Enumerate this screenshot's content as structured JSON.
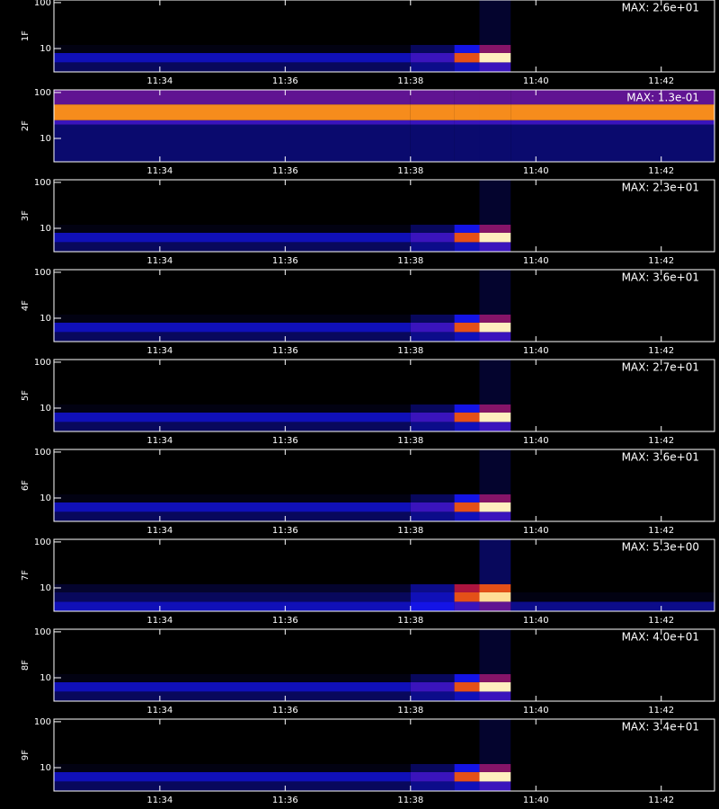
{
  "chart_data": [
    {
      "type": "spectrogram",
      "ylabel": "1F",
      "annotation": "MAX: 2.6e+01",
      "log_y": true,
      "xlim": [
        32.31,
        42.85
      ],
      "ylim": [
        3.1,
        114
      ],
      "yticks": [
        10,
        100
      ],
      "xticks": [
        {
          "value": 34,
          "label": "11:34"
        },
        {
          "value": 36,
          "label": "11:36"
        },
        {
          "value": 38,
          "label": "11:38"
        },
        {
          "value": 40,
          "label": "11:40"
        },
        {
          "value": 42,
          "label": "11:42"
        }
      ],
      "xedges": [
        32.31,
        38.0,
        38.7,
        39.1,
        39.6,
        42.85
      ],
      "yedges": [
        3.1,
        5,
        8,
        12,
        114
      ],
      "z": [
        [
          0.1,
          0.15,
          0.2,
          0.3,
          0
        ],
        [
          0.2,
          0.3,
          0.6,
          0.95,
          0
        ],
        [
          0.02,
          0.1,
          0.25,
          0.4,
          0
        ],
        [
          0,
          0,
          0,
          0.05,
          0
        ]
      ]
    },
    {
      "type": "spectrogram",
      "ylabel": "2F",
      "annotation": "MAX: 1.3e-01",
      "log_y": true,
      "xlim": [
        32.31,
        42.85
      ],
      "ylim": [
        3.1,
        114
      ],
      "yticks": [
        10,
        100
      ],
      "xticks": [
        {
          "value": 34,
          "label": "11:34"
        },
        {
          "value": 36,
          "label": "11:36"
        },
        {
          "value": 38,
          "label": "11:38"
        },
        {
          "value": 40,
          "label": "11:40"
        },
        {
          "value": 42,
          "label": "11:42"
        }
      ],
      "xedges": [
        32.31,
        38.0,
        38.7,
        39.1,
        39.6,
        42.85
      ],
      "yedges": [
        3.1,
        20,
        25,
        55,
        114
      ],
      "z": [
        [
          0.12,
          0.12,
          0.12,
          0.12,
          0.12
        ],
        [
          0.3,
          0.3,
          0.3,
          0.3,
          0.3
        ],
        [
          0.7,
          0.7,
          0.7,
          0.7,
          0.7
        ],
        [
          0.35,
          0.35,
          0.35,
          0.35,
          0.35
        ]
      ]
    },
    {
      "type": "spectrogram",
      "ylabel": "3F",
      "annotation": "MAX: 2.3e+01",
      "log_y": true,
      "xlim": [
        32.31,
        42.85
      ],
      "ylim": [
        3.1,
        114
      ],
      "yticks": [
        10,
        100
      ],
      "xticks": [
        {
          "value": 34,
          "label": "11:34"
        },
        {
          "value": 36,
          "label": "11:36"
        },
        {
          "value": 38,
          "label": "11:38"
        },
        {
          "value": 40,
          "label": "11:40"
        },
        {
          "value": 42,
          "label": "11:42"
        }
      ],
      "xedges": [
        32.31,
        38.0,
        38.7,
        39.1,
        39.6,
        42.85
      ],
      "yedges": [
        3.1,
        5,
        8,
        12,
        114
      ],
      "z": [
        [
          0.1,
          0.15,
          0.2,
          0.3,
          0
        ],
        [
          0.2,
          0.3,
          0.6,
          0.95,
          0
        ],
        [
          0.02,
          0.1,
          0.25,
          0.4,
          0
        ],
        [
          0,
          0,
          0,
          0.05,
          0
        ]
      ]
    },
    {
      "type": "spectrogram",
      "ylabel": "4F",
      "annotation": "MAX: 3.6e+01",
      "log_y": true,
      "xlim": [
        32.31,
        42.85
      ],
      "ylim": [
        3.1,
        114
      ],
      "yticks": [
        10,
        100
      ],
      "xticks": [
        {
          "value": 34,
          "label": "11:34"
        },
        {
          "value": 36,
          "label": "11:36"
        },
        {
          "value": 38,
          "label": "11:38"
        },
        {
          "value": 40,
          "label": "11:40"
        },
        {
          "value": 42,
          "label": "11:42"
        }
      ],
      "xedges": [
        32.31,
        38.0,
        38.7,
        39.1,
        39.6,
        42.85
      ],
      "yedges": [
        3.1,
        5,
        8,
        12,
        114
      ],
      "z": [
        [
          0.1,
          0.15,
          0.2,
          0.3,
          0
        ],
        [
          0.2,
          0.3,
          0.6,
          0.95,
          0
        ],
        [
          0.02,
          0.1,
          0.25,
          0.4,
          0
        ],
        [
          0,
          0,
          0,
          0.05,
          0
        ]
      ]
    },
    {
      "type": "spectrogram",
      "ylabel": "5F",
      "annotation": "MAX: 2.7e+01",
      "log_y": true,
      "xlim": [
        32.31,
        42.85
      ],
      "ylim": [
        3.1,
        114
      ],
      "yticks": [
        10,
        100
      ],
      "xticks": [
        {
          "value": 34,
          "label": "11:34"
        },
        {
          "value": 36,
          "label": "11:36"
        },
        {
          "value": 38,
          "label": "11:38"
        },
        {
          "value": 40,
          "label": "11:40"
        },
        {
          "value": 42,
          "label": "11:42"
        }
      ],
      "xedges": [
        32.31,
        38.0,
        38.7,
        39.1,
        39.6,
        42.85
      ],
      "yedges": [
        3.1,
        5,
        8,
        12,
        114
      ],
      "z": [
        [
          0.1,
          0.15,
          0.2,
          0.3,
          0
        ],
        [
          0.2,
          0.3,
          0.6,
          0.95,
          0
        ],
        [
          0.02,
          0.1,
          0.25,
          0.4,
          0
        ],
        [
          0,
          0,
          0,
          0.05,
          0
        ]
      ]
    },
    {
      "type": "spectrogram",
      "ylabel": "6F",
      "annotation": "MAX: 3.6e+01",
      "log_y": true,
      "xlim": [
        32.31,
        42.85
      ],
      "ylim": [
        3.1,
        114
      ],
      "yticks": [
        10,
        100
      ],
      "xticks": [
        {
          "value": 34,
          "label": "11:34"
        },
        {
          "value": 36,
          "label": "11:36"
        },
        {
          "value": 38,
          "label": "11:38"
        },
        {
          "value": 40,
          "label": "11:40"
        },
        {
          "value": 42,
          "label": "11:42"
        }
      ],
      "xedges": [
        32.31,
        38.0,
        38.7,
        39.1,
        39.6,
        42.85
      ],
      "yedges": [
        3.1,
        5,
        8,
        12,
        114
      ],
      "z": [
        [
          0.1,
          0.15,
          0.2,
          0.3,
          0
        ],
        [
          0.2,
          0.3,
          0.6,
          0.95,
          0
        ],
        [
          0.02,
          0.1,
          0.25,
          0.4,
          0
        ],
        [
          0,
          0,
          0,
          0.05,
          0
        ]
      ]
    },
    {
      "type": "spectrogram",
      "ylabel": "7F",
      "annotation": "MAX: 5.3e+00",
      "log_y": true,
      "xlim": [
        32.31,
        42.85
      ],
      "ylim": [
        3.1,
        114
      ],
      "yticks": [
        10,
        100
      ],
      "xticks": [
        {
          "value": 34,
          "label": "11:34"
        },
        {
          "value": 36,
          "label": "11:36"
        },
        {
          "value": 38,
          "label": "11:38"
        },
        {
          "value": 40,
          "label": "11:40"
        },
        {
          "value": 42,
          "label": "11:42"
        }
      ],
      "xedges": [
        32.31,
        38.0,
        38.7,
        39.1,
        39.6,
        42.85
      ],
      "yedges": [
        3.1,
        5,
        8,
        12,
        114
      ],
      "z": [
        [
          0.2,
          0.25,
          0.3,
          0.35,
          0.15
        ],
        [
          0.1,
          0.2,
          0.6,
          0.9,
          0.02
        ],
        [
          0.05,
          0.15,
          0.45,
          0.6,
          0
        ],
        [
          0,
          0,
          0,
          0.1,
          0
        ]
      ]
    },
    {
      "type": "spectrogram",
      "ylabel": "8F",
      "annotation": "MAX: 4.0e+01",
      "log_y": true,
      "xlim": [
        32.31,
        42.85
      ],
      "ylim": [
        3.1,
        114
      ],
      "yticks": [
        10,
        100
      ],
      "xticks": [
        {
          "value": 34,
          "label": "11:34"
        },
        {
          "value": 36,
          "label": "11:36"
        },
        {
          "value": 38,
          "label": "11:38"
        },
        {
          "value": 40,
          "label": "11:40"
        },
        {
          "value": 42,
          "label": "11:42"
        }
      ],
      "xedges": [
        32.31,
        38.0,
        38.7,
        39.1,
        39.6,
        42.85
      ],
      "yedges": [
        3.1,
        5,
        8,
        12,
        114
      ],
      "z": [
        [
          0.1,
          0.15,
          0.2,
          0.3,
          0
        ],
        [
          0.2,
          0.3,
          0.6,
          0.95,
          0
        ],
        [
          0.02,
          0.1,
          0.25,
          0.4,
          0
        ],
        [
          0,
          0,
          0,
          0.05,
          0
        ]
      ]
    },
    {
      "type": "spectrogram",
      "ylabel": "9F",
      "annotation": "MAX: 3.4e+01",
      "log_y": true,
      "xlim": [
        32.31,
        42.85
      ],
      "ylim": [
        3.1,
        114
      ],
      "yticks": [
        10,
        100
      ],
      "xticks": [
        {
          "value": 34,
          "label": "11:34"
        },
        {
          "value": 36,
          "label": "11:36"
        },
        {
          "value": 38,
          "label": "11:38"
        },
        {
          "value": 40,
          "label": "11:40"
        },
        {
          "value": 42,
          "label": "11:42"
        }
      ],
      "xedges": [
        32.31,
        38.0,
        38.7,
        39.1,
        39.6,
        42.85
      ],
      "yedges": [
        3.1,
        5,
        8,
        12,
        114
      ],
      "z": [
        [
          0.1,
          0.15,
          0.2,
          0.3,
          0
        ],
        [
          0.2,
          0.3,
          0.6,
          0.95,
          0
        ],
        [
          0.02,
          0.1,
          0.25,
          0.4,
          0
        ],
        [
          0,
          0,
          0,
          0.05,
          0
        ]
      ]
    }
  ]
}
